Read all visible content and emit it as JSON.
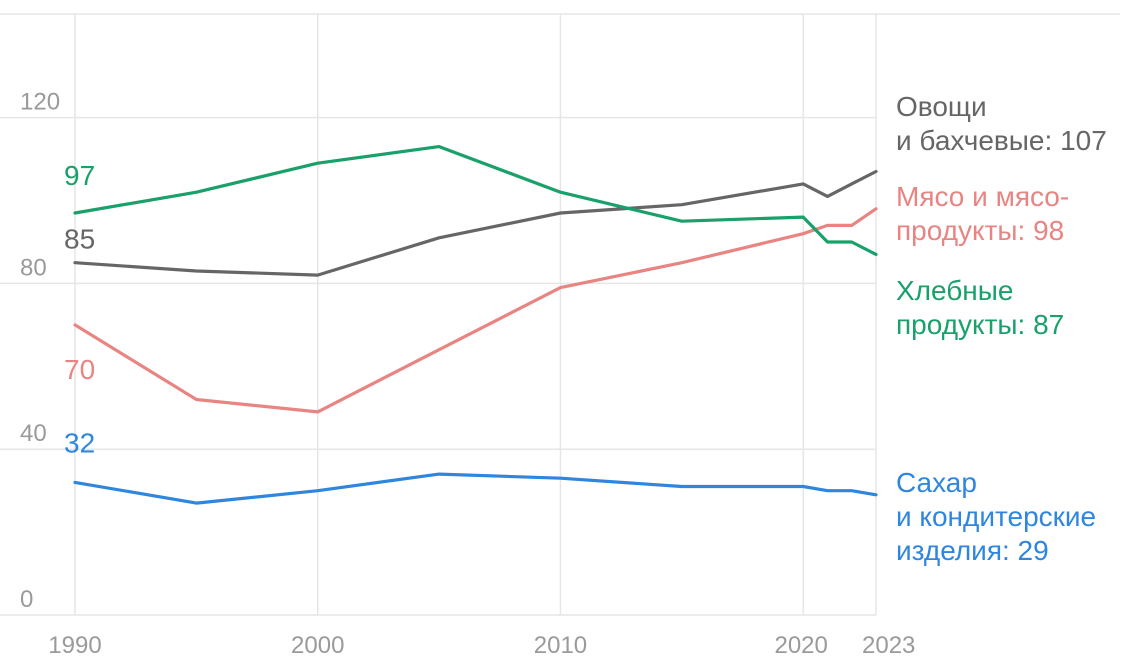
{
  "chart_data": {
    "type": "line",
    "title": "",
    "xlabel": "",
    "ylabel": "",
    "xlim": [
      1990,
      2023
    ],
    "ylim": [
      0,
      145
    ],
    "y_ticks": [
      0,
      40,
      80,
      120
    ],
    "x_ticks": [
      1990,
      2000,
      2010,
      2020,
      2023
    ],
    "grid": true,
    "series": [
      {
        "key": "veg",
        "color": "#666666",
        "start_label": "85",
        "end_label_lines": [
          "Овощи",
          "и бахчевые: 107"
        ],
        "x": [
          1990,
          1995,
          2000,
          2005,
          2010,
          2015,
          2020,
          2021,
          2022,
          2023
        ],
        "y": [
          85,
          83,
          82,
          91,
          97,
          99,
          104,
          101,
          104,
          107
        ]
      },
      {
        "key": "meat",
        "color": "#e88582",
        "start_label": "70",
        "end_label_lines": [
          "Мясо и мясо-",
          "продукты: 98"
        ],
        "x": [
          1990,
          1995,
          2000,
          2005,
          2010,
          2015,
          2020,
          2021,
          2022,
          2023
        ],
        "y": [
          70,
          52,
          49,
          64,
          79,
          85,
          92,
          94,
          94,
          98
        ]
      },
      {
        "key": "bread",
        "color": "#1aa06a",
        "start_label": "97",
        "end_label_lines": [
          "Хлебные",
          "продукты: 87"
        ],
        "x": [
          1990,
          1995,
          2000,
          2005,
          2010,
          2015,
          2020,
          2021,
          2022,
          2023
        ],
        "y": [
          97,
          102,
          109,
          113,
          102,
          95,
          96,
          90,
          90,
          87
        ]
      },
      {
        "key": "sugar",
        "color": "#2e86de",
        "start_label": "32",
        "end_label_lines": [
          "Сахар",
          "и кондитерские",
          "изделия: 29"
        ],
        "x": [
          1990,
          1995,
          2000,
          2005,
          2010,
          2015,
          2020,
          2021,
          2022,
          2023
        ],
        "y": [
          32,
          27,
          30,
          34,
          33,
          31,
          31,
          30,
          30,
          29
        ]
      }
    ]
  }
}
